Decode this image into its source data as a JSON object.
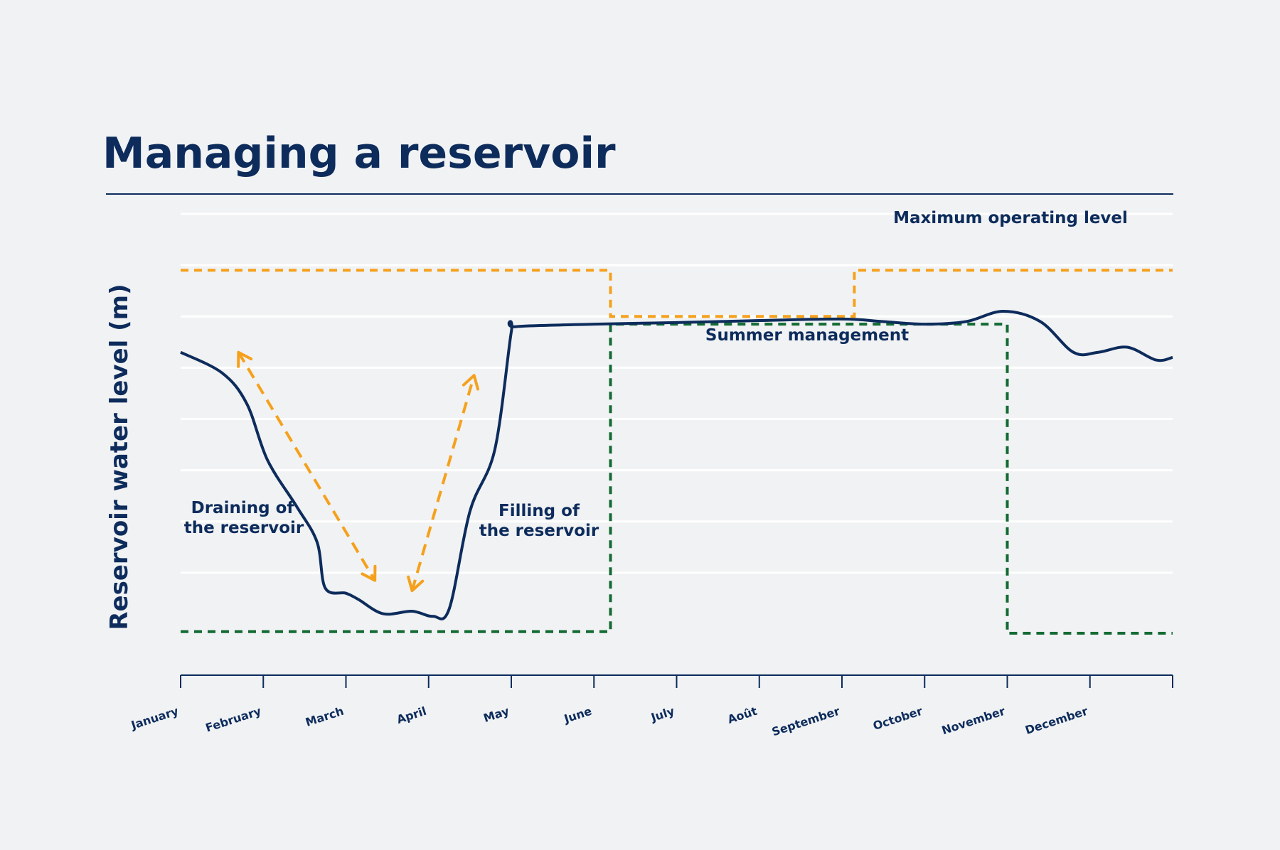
{
  "chart_data": {
    "type": "line",
    "title": "Managing a reservoir",
    "ylabel": "Reservoir water level (m)",
    "xlabel": "",
    "categories": [
      "January",
      "February",
      "March",
      "April",
      "May",
      "June",
      "July",
      "Août",
      "September",
      "October",
      "November",
      "December"
    ],
    "x_range": [
      0,
      12
    ],
    "grid": true,
    "series": [
      {
        "values": [
          [
            0.0,
            5.3
          ],
          [
            0.5,
            4.9
          ],
          [
            0.8,
            4.3
          ],
          [
            1.05,
            3.2
          ],
          [
            1.4,
            2.3
          ],
          [
            1.65,
            1.6
          ],
          [
            1.75,
            0.7
          ],
          [
            2.0,
            0.6
          ],
          [
            2.15,
            0.48
          ],
          [
            2.45,
            0.2
          ],
          [
            2.8,
            0.25
          ],
          [
            3.05,
            0.15
          ],
          [
            3.25,
            0.3
          ],
          [
            3.5,
            2.2
          ],
          [
            3.8,
            3.4
          ],
          [
            4.0,
            5.7
          ],
          [
            4.05,
            5.8
          ],
          [
            5.0,
            5.85
          ],
          [
            6.0,
            5.88
          ],
          [
            7.0,
            5.92
          ],
          [
            8.0,
            5.95
          ],
          [
            8.5,
            5.9
          ],
          [
            9.0,
            5.85
          ],
          [
            9.5,
            5.9
          ],
          [
            9.95,
            6.1
          ],
          [
            10.4,
            5.9
          ],
          [
            10.8,
            5.3
          ],
          [
            11.1,
            5.3
          ],
          [
            11.45,
            5.4
          ],
          [
            11.8,
            5.15
          ],
          [
            12.0,
            5.2
          ]
        ]
      }
    ],
    "max_operating_level": {
      "label": "Maximum operating level",
      "color": "#f5a11c",
      "steps": [
        [
          0,
          6.9
        ],
        [
          5.2,
          6.9
        ],
        [
          5.2,
          6.0
        ],
        [
          8.15,
          6.0
        ],
        [
          8.15,
          6.9
        ],
        [
          12,
          6.9
        ]
      ]
    },
    "minimum_level": {
      "color": "#136b33",
      "steps": [
        [
          0,
          -0.15
        ],
        [
          5.2,
          -0.15
        ],
        [
          5.2,
          5.85
        ],
        [
          10.0,
          5.85
        ],
        [
          10.0,
          -0.18
        ],
        [
          12,
          -0.18
        ]
      ]
    },
    "annotations": [
      {
        "text": [
          "Draining of",
          "the reservoir"
        ]
      },
      {
        "text": [
          "Filling of",
          "the reservoir"
        ]
      },
      {
        "text": [
          "Summer management"
        ]
      }
    ],
    "arrows": [
      {
        "from": [
          0.7,
          5.3
        ],
        "to": [
          2.35,
          0.85
        ],
        "color": "#f5a11c"
      },
      {
        "from": [
          2.8,
          0.65
        ],
        "to": [
          3.55,
          4.85
        ],
        "color": "#f5a11c"
      }
    ]
  }
}
